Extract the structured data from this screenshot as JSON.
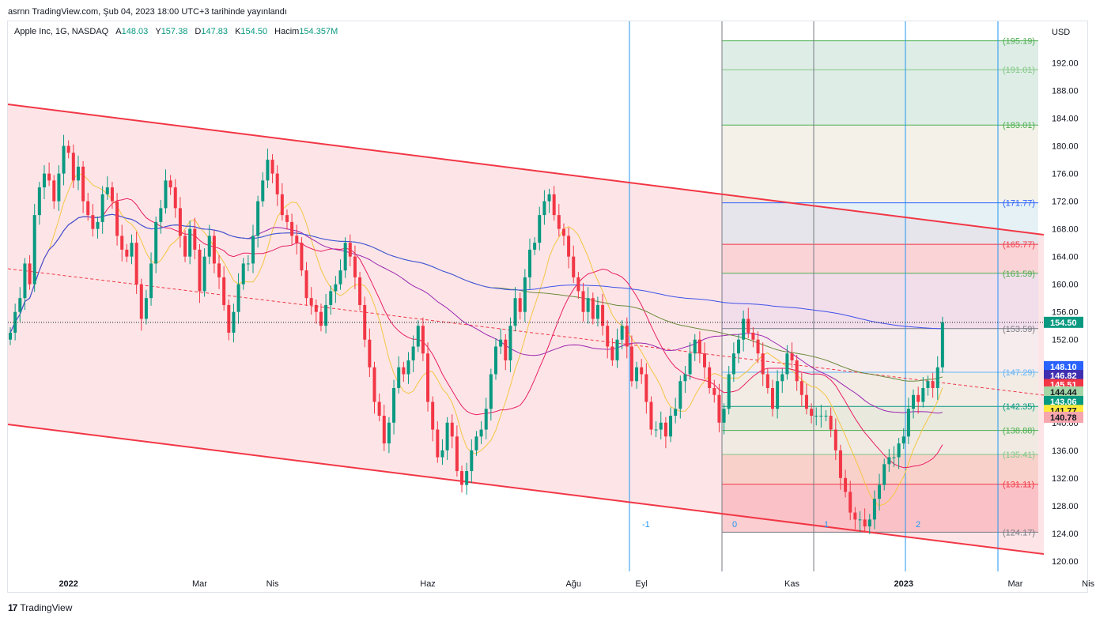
{
  "header": {
    "published": "asrnn TradingView.com, Şub 04, 2023 18:00 UTC+3 tarihinde yayınlandı"
  },
  "legend": {
    "symbol": "Apple Inc, 1G, NASDAQ",
    "o_label": "A",
    "o_value": "148.03",
    "h_label": "Y",
    "h_value": "157.38",
    "l_label": "D",
    "l_value": "147.83",
    "c_label": "K",
    "c_value": "154.50",
    "vol_label": "Hacim",
    "vol_value": "154.357M"
  },
  "footer": {
    "brand": "TradingView"
  },
  "colors": {
    "up": "#089981",
    "down": "#f23645",
    "channel": "#f23645",
    "fib_blue": "#2962ff"
  },
  "chart_data": {
    "type": "candlestick",
    "currency": "USD",
    "ylim": [
      118.5,
      198
    ],
    "y_ticks": [
      120,
      124,
      128,
      132,
      136,
      140,
      144,
      148,
      152,
      156,
      160,
      164,
      168,
      172,
      176,
      180,
      184,
      188,
      192
    ],
    "y_tick_labels": [
      "120.00",
      "124.00",
      "128.00",
      "132.00",
      "136.00",
      "140.00",
      "144.00",
      "148.00",
      "152.00",
      "156.00",
      "160.00",
      "164.00",
      "168.00",
      "172.00",
      "176.00",
      "180.00",
      "184.00",
      "188.00",
      "192.00"
    ],
    "x_labels": [
      {
        "text": "2022",
        "bold": true,
        "i": 12
      },
      {
        "text": "Mar",
        "i": 39
      },
      {
        "text": "Nis",
        "i": 54
      },
      {
        "text": "Haz",
        "i": 86
      },
      {
        "text": "Ağu",
        "i": 116
      },
      {
        "text": "Eyl",
        "i": 130
      },
      {
        "text": "Kas",
        "i": 161
      },
      {
        "text": "2023",
        "bold": true,
        "i": 184
      },
      {
        "text": "Mar",
        "i": 207
      },
      {
        "text": "Nis",
        "i": 222
      }
    ],
    "closes": [
      153,
      156,
      158,
      163,
      160,
      170,
      174,
      176,
      175,
      172,
      176,
      180,
      179,
      175,
      177,
      172,
      170,
      168,
      169,
      173,
      174,
      172,
      167,
      165,
      164,
      166,
      160,
      155,
      158,
      163,
      169,
      171,
      175,
      174,
      171,
      167,
      164,
      168,
      165,
      159,
      164,
      167,
      163,
      161,
      157,
      153,
      156,
      160,
      163,
      163,
      167,
      172,
      175,
      178,
      176,
      173,
      170,
      169,
      167,
      166,
      162,
      158,
      157,
      156,
      154,
      157,
      159,
      160,
      162,
      166,
      164,
      161,
      157,
      152,
      148,
      143,
      141,
      137,
      140,
      145,
      148,
      147,
      149,
      151,
      154,
      150,
      143,
      139,
      135,
      136,
      140,
      138,
      133,
      131,
      133,
      136,
      138,
      139,
      142,
      147,
      151,
      152,
      149,
      154,
      158,
      156,
      161,
      165,
      166,
      170,
      172,
      173,
      170,
      168,
      167,
      164,
      161,
      159,
      156,
      158,
      155,
      157,
      154,
      151,
      149,
      152,
      154,
      151,
      146,
      148,
      147,
      143,
      139,
      139,
      140,
      138,
      141,
      142,
      146,
      147,
      150,
      152,
      150,
      148,
      145,
      144,
      140,
      142,
      147,
      150,
      152,
      155,
      153,
      152,
      150,
      147,
      145,
      142,
      146,
      147,
      150,
      149,
      146,
      144,
      142,
      141,
      141,
      141,
      141,
      139,
      136,
      132,
      130,
      127,
      126,
      126,
      125,
      126,
      129,
      131,
      134,
      135,
      135,
      137,
      138,
      142,
      144,
      143,
      145,
      146,
      145,
      148,
      154.5
    ],
    "fib_levels": [
      {
        "value": 124.17,
        "label": "(124.17)",
        "color": "#787b86"
      },
      {
        "value": 131.11,
        "label": "(131.11)",
        "color": "#f23645"
      },
      {
        "value": 135.41,
        "label": "(135.41)",
        "color": "#81c784"
      },
      {
        "value": 138.88,
        "label": "(138.88)",
        "color": "#4caf50"
      },
      {
        "value": 142.35,
        "label": "(142.35)",
        "color": "#089981"
      },
      {
        "value": 147.29,
        "label": "(147.29)",
        "color": "#64b5f6"
      },
      {
        "value": 153.59,
        "label": "(153.59)",
        "color": "#787b86"
      },
      {
        "value": 161.59,
        "label": "(161.59)",
        "color": "#4caf50"
      },
      {
        "value": 165.77,
        "label": "(165.77)",
        "color": "#f23645"
      },
      {
        "value": 171.77,
        "label": "(171.77)",
        "color": "#2962ff"
      },
      {
        "value": 183.01,
        "label": "(183.01)",
        "color": "#4caf50"
      },
      {
        "value": 191.01,
        "label": "(191.01)",
        "color": "#81c784"
      },
      {
        "value": 195.19,
        "label": "(195.19)",
        "color": "#4caf50"
      }
    ],
    "fib_time_labels": [
      "-1",
      "0",
      "1",
      "2"
    ],
    "price_badges": [
      {
        "value": 154.5,
        "label": "154.50",
        "bg": "#089981",
        "fg": "#ffffff"
      },
      {
        "value": 148.1,
        "label": "148.10",
        "bg": "#2962ff",
        "fg": "#ffffff"
      },
      {
        "value": 146.82,
        "label": "146.82",
        "bg": "#3f2fb0",
        "fg": "#ffffff"
      },
      {
        "value": 145.51,
        "label": "145.51",
        "bg": "#f23645",
        "fg": "#ffffff"
      },
      {
        "value": 144.44,
        "label": "144.44",
        "bg": "#a5d6a7",
        "fg": "#131722"
      },
      {
        "value": 143.06,
        "label": "143.06",
        "bg": "#089981",
        "fg": "#ffffff"
      },
      {
        "value": 141.77,
        "label": "141.77",
        "bg": "#ffeb3b",
        "fg": "#131722"
      },
      {
        "value": 140.78,
        "label": "140.78",
        "bg": "#f7a6ad",
        "fg": "#131722"
      }
    ]
  }
}
